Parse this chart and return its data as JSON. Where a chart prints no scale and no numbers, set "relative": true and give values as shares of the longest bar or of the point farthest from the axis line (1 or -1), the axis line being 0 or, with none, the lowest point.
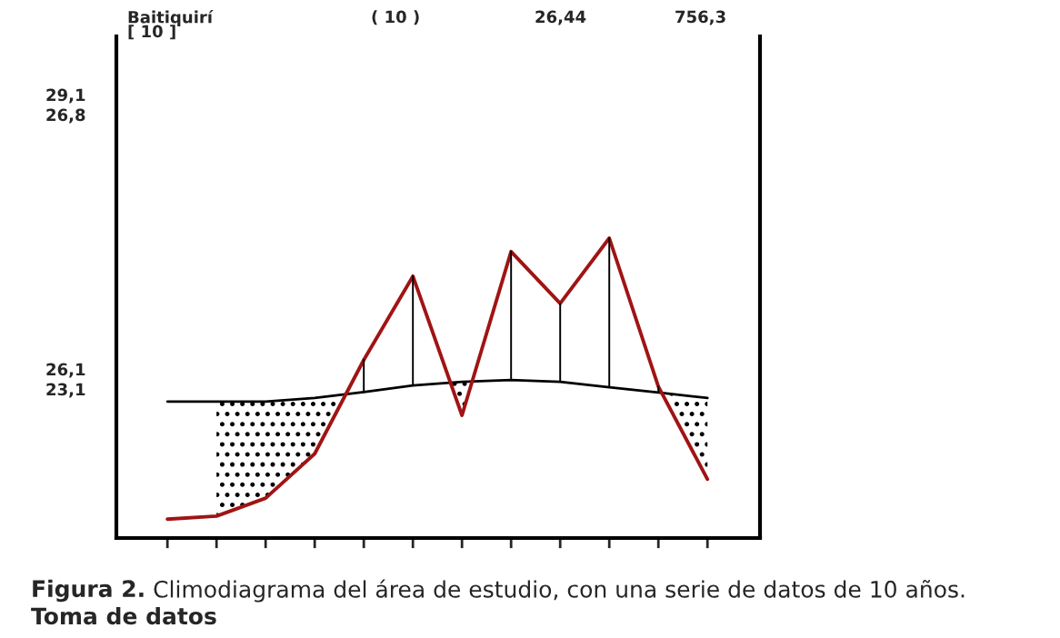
{
  "chart_data": {
    "type": "line",
    "relative": true,
    "categories": [
      null,
      null,
      null,
      null,
      null,
      null,
      null,
      null,
      null,
      null,
      null,
      null
    ],
    "series": [
      {
        "color": "#000000",
        "values": [
          0.455,
          0.455,
          0.455,
          0.467,
          0.487,
          0.509,
          0.521,
          0.527,
          0.521,
          0.503,
          0.485,
          0.467
        ]
      },
      {
        "color": "#a01414",
        "values": [
          0.063,
          0.073,
          0.133,
          0.281,
          0.594,
          0.873,
          0.409,
          0.955,
          0.782,
          1.0,
          0.505,
          0.196
        ]
      }
    ],
    "annotations": [
      "Baitiquirí",
      "[ 10 ]",
      "( 10 )",
      "26,44",
      "756,3",
      "29,1",
      "26,8",
      "26,1",
      "23,1",
      "Figura 2.",
      "Climodiagrama del área de estudio, con una serie de datos de 10 años.",
      "Toma de datos"
    ],
    "grid": false,
    "marker": "none",
    "line_style": "solid"
  }
}
